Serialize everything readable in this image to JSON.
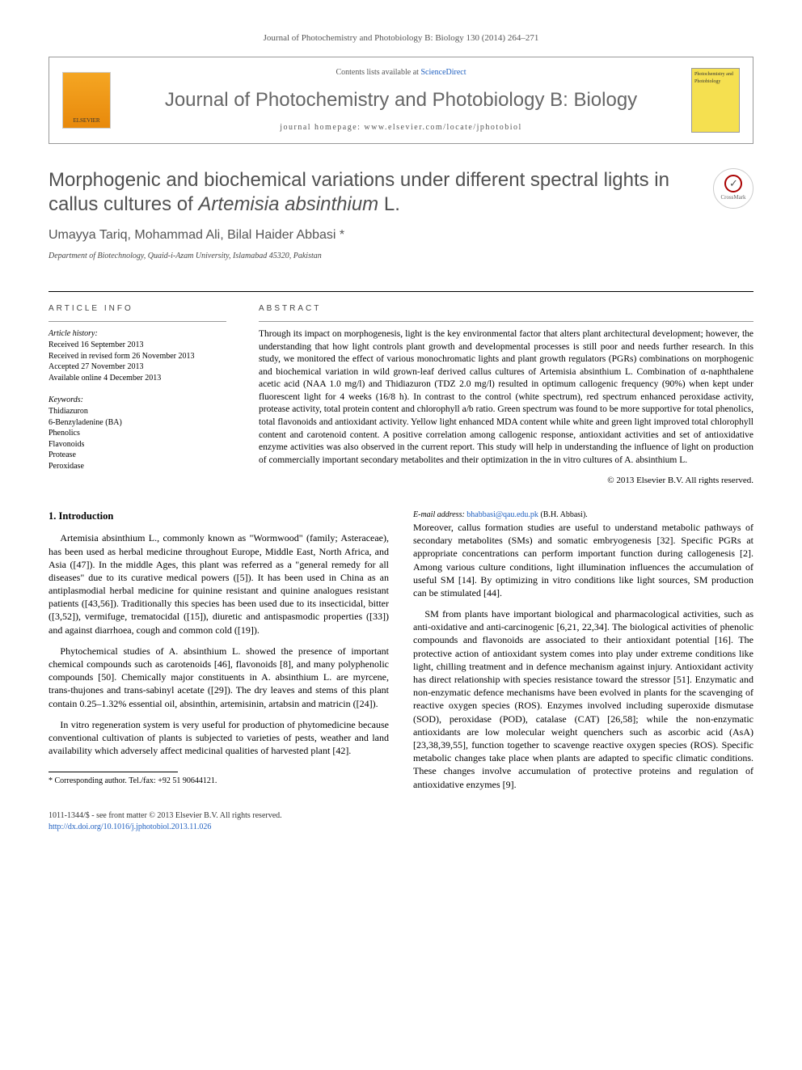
{
  "journal_ref_line": "Journal of Photochemistry and Photobiology B: Biology 130 (2014) 264–271",
  "publisher_logo_label": "ELSEVIER",
  "contents_prefix": "Contents lists available at ",
  "contents_link": "ScienceDirect",
  "journal_name": "Journal of Photochemistry and Photobiology B: Biology",
  "journal_homepage": "journal homepage: www.elsevier.com/locate/jphotobiol",
  "cover_text": "Photochemistry and Photobiology",
  "crossmark_label": "CrossMark",
  "title_plain_a": "Morphogenic and biochemical variations under different spectral lights in callus cultures of ",
  "title_italic": "Artemisia absinthium",
  "title_plain_b": " L.",
  "authors": "Umayya Tariq, Mohammad Ali, Bilal Haider Abbasi *",
  "affiliation": "Department of Biotechnology, Quaid-i-Azam University, Islamabad 45320, Pakistan",
  "article_info_heading": "article info",
  "history_label": "Article history:",
  "history": {
    "received": "Received 16 September 2013",
    "revised": "Received in revised form 26 November 2013",
    "accepted": "Accepted 27 November 2013",
    "online": "Available online 4 December 2013"
  },
  "keywords_label": "Keywords:",
  "keywords": [
    "Thidiazuron",
    "6-Benzyladenine (BA)",
    "Phenolics",
    "Flavonoids",
    "Protease",
    "Peroxidase"
  ],
  "abstract_heading": "abstract",
  "abstract_body": "Through its impact on morphogenesis, light is the key environmental factor that alters plant architectural development; however, the understanding that how light controls plant growth and developmental processes is still poor and needs further research. In this study, we monitored the effect of various monochromatic lights and plant growth regulators (PGRs) combinations on morphogenic and biochemical variation in wild grown-leaf derived callus cultures of Artemisia absinthium L. Combination of α-naphthalene acetic acid (NAA 1.0 mg/l) and Thidiazuron (TDZ 2.0 mg/l) resulted in optimum callogenic frequency (90%) when kept under fluorescent light for 4 weeks (16/8 h). In contrast to the control (white spectrum), red spectrum enhanced peroxidase activity, protease activity, total protein content and chlorophyll a/b ratio. Green spectrum was found to be more supportive for total phenolics, total flavonoids and antioxidant activity. Yellow light enhanced MDA content while white and green light improved total chlorophyll content and carotenoid content. A positive correlation among callogenic response, antioxidant activities and set of antioxidative enzyme activities was also observed in the current report. This study will help in understanding the influence of light on production of commercially important secondary metabolites and their optimization in the in vitro cultures of A. absinthium L.",
  "copyright": "© 2013 Elsevier B.V. All rights reserved.",
  "section1_heading": "1. Introduction",
  "p1": "Artemisia absinthium L., commonly known as \"Wormwood\" (family; Asteraceae), has been used as herbal medicine throughout Europe, Middle East, North Africa, and Asia ([47]). In the middle Ages, this plant was referred as a \"general remedy for all diseases\" due to its curative medical powers ([5]). It has been used in China as an antiplasmodial herbal medicine for quinine resistant and quinine analogues resistant patients ([43,56]). Traditionally this species has been used due to its insecticidal, bitter ([3,52]), vermifuge, trematocidal ([15]), diuretic and antispasmodic properties ([33]) and against diarrhoea, cough and common cold ([19]).",
  "p2": "Phytochemical studies of A. absinthium L. showed the presence of important chemical compounds such as carotenoids [46], flavonoids [8], and many polyphenolic compounds [50]. Chemically major constituents in A. absinthium L. are myrcene, trans-thujones and trans-sabinyl acetate ([29]). The dry leaves and stems of this plant contain 0.25–1.32% essential oil, absinthin, artemisinin, artabsin and matricin ([24]).",
  "p3": "In vitro regeneration system is very useful for production of phytomedicine because conventional cultivation of plants is subjected to varieties of pests, weather and land availability which adversely affect medicinal qualities of harvested plant [42].",
  "p4": "Moreover, callus formation studies are useful to understand metabolic pathways of secondary metabolites (SMs) and somatic embryogenesis [32]. Specific PGRs at appropriate concentrations can perform important function during callogenesis [2]. Among various culture conditions, light illumination influences the accumulation of useful SM [14]. By optimizing in vitro conditions like light sources, SM production can be stimulated [44].",
  "p5": "SM from plants have important biological and pharmacological activities, such as anti-oxidative and anti-carcinogenic [6,21, 22,34]. The biological activities of phenolic compounds and flavonoids are associated to their antioxidant potential [16]. The protective action of antioxidant system comes into play under extreme conditions like light, chilling treatment and in defence mechanism against injury. Antioxidant activity has direct relationship with species resistance toward the stressor [51]. Enzymatic and non-enzymatic defence mechanisms have been evolved in plants for the scavenging of reactive oxygen species (ROS). Enzymes involved including superoxide dismutase (SOD), peroxidase (POD), catalase (CAT) [26,58]; while the non-enzymatic antioxidants are low molecular weight quenchers such as ascorbic acid (AsA) [23,38,39,55], function together to scavenge reactive oxygen species (ROS). Specific metabolic changes take place when plants are adapted to specific climatic conditions. These changes involve accumulation of protective proteins and regulation of antioxidative enzymes [9].",
  "corr_author": "* Corresponding author. Tel./fax: +92 51 90644121.",
  "corr_email_label": "E-mail address:",
  "corr_email": "bhabbasi@qau.edu.pk",
  "corr_email_suffix": " (B.H. Abbasi).",
  "footer_issn": "1011-1344/$ - see front matter © 2013 Elsevier B.V. All rights reserved.",
  "footer_doi": "http://dx.doi.org/10.1016/j.jphotobiol.2013.11.026",
  "colors": {
    "link": "#2060c0",
    "header_text": "#666",
    "cover_bg": "#f5e050"
  }
}
